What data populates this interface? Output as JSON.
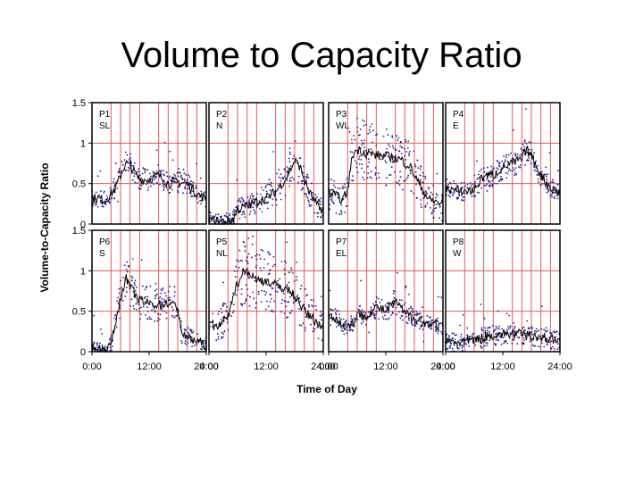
{
  "slide": {
    "title": "Volume to Capacity Ratio"
  },
  "colors": {
    "grid": "#e25a5a",
    "points": "#1d1d8a",
    "line": "#000000",
    "frame": "#000000"
  },
  "chart_data": {
    "type": "scatter",
    "ylabel": "Volume-to-Capacity Ratio",
    "xlabel": "Time of Day",
    "ylim": [
      0,
      1.5
    ],
    "yticks": [
      "0",
      "0.5",
      "1",
      "1.5"
    ],
    "xlim": [
      0,
      24
    ],
    "xticks": [
      "0:00",
      "12:00",
      "24:00"
    ],
    "grid": true,
    "panels": [
      {
        "id": "P1",
        "dir": "SL",
        "row": 0,
        "col": 0,
        "profile": [
          [
            0,
            0.32
          ],
          [
            3,
            0.3
          ],
          [
            5,
            0.45
          ],
          [
            7,
            0.75
          ],
          [
            8,
            0.72
          ],
          [
            10,
            0.55
          ],
          [
            12,
            0.55
          ],
          [
            14,
            0.6
          ],
          [
            16,
            0.5
          ],
          [
            18,
            0.52
          ],
          [
            20,
            0.5
          ],
          [
            22,
            0.38
          ],
          [
            24,
            0.3
          ]
        ]
      },
      {
        "id": "P2",
        "dir": "N",
        "row": 0,
        "col": 1,
        "profile": [
          [
            0,
            0.05
          ],
          [
            3,
            0.03
          ],
          [
            5,
            0.05
          ],
          [
            6,
            0.18
          ],
          [
            8,
            0.22
          ],
          [
            10,
            0.28
          ],
          [
            12,
            0.32
          ],
          [
            14,
            0.4
          ],
          [
            16,
            0.55
          ],
          [
            18,
            0.78
          ],
          [
            19,
            0.72
          ],
          [
            21,
            0.4
          ],
          [
            23,
            0.2
          ],
          [
            24,
            0.18
          ]
        ]
      },
      {
        "id": "P3",
        "dir": "WL",
        "row": 0,
        "col": 2,
        "profile": [
          [
            0,
            0.4
          ],
          [
            3,
            0.3
          ],
          [
            4,
            0.42
          ],
          [
            5,
            0.85
          ],
          [
            6,
            0.92
          ],
          [
            8,
            0.88
          ],
          [
            10,
            0.85
          ],
          [
            12,
            0.84
          ],
          [
            15,
            0.8
          ],
          [
            17,
            0.72
          ],
          [
            19,
            0.5
          ],
          [
            21,
            0.3
          ],
          [
            24,
            0.25
          ]
        ]
      },
      {
        "id": "P4",
        "dir": "E",
        "row": 0,
        "col": 3,
        "profile": [
          [
            0,
            0.45
          ],
          [
            3,
            0.4
          ],
          [
            6,
            0.42
          ],
          [
            8,
            0.6
          ],
          [
            10,
            0.6
          ],
          [
            12,
            0.7
          ],
          [
            14,
            0.75
          ],
          [
            16,
            0.8
          ],
          [
            17,
            0.92
          ],
          [
            18,
            0.85
          ],
          [
            20,
            0.6
          ],
          [
            22,
            0.45
          ],
          [
            24,
            0.38
          ]
        ]
      },
      {
        "id": "P6",
        "dir": "S",
        "row": 1,
        "col": 0,
        "profile": [
          [
            0,
            0.03
          ],
          [
            3,
            0.03
          ],
          [
            4,
            0.08
          ],
          [
            5,
            0.38
          ],
          [
            6,
            0.65
          ],
          [
            7,
            0.92
          ],
          [
            8,
            0.8
          ],
          [
            10,
            0.62
          ],
          [
            12,
            0.6
          ],
          [
            14,
            0.58
          ],
          [
            16,
            0.6
          ],
          [
            18,
            0.55
          ],
          [
            19,
            0.2
          ],
          [
            21,
            0.15
          ],
          [
            24,
            0.08
          ]
        ]
      },
      {
        "id": "P5",
        "dir": "NL",
        "row": 1,
        "col": 1,
        "profile": [
          [
            0,
            0.35
          ],
          [
            2,
            0.3
          ],
          [
            3,
            0.38
          ],
          [
            4,
            0.42
          ],
          [
            5,
            0.7
          ],
          [
            7,
            0.98
          ],
          [
            8,
            1.0
          ],
          [
            10,
            0.88
          ],
          [
            12,
            0.88
          ],
          [
            14,
            0.82
          ],
          [
            16,
            0.78
          ],
          [
            18,
            0.7
          ],
          [
            20,
            0.5
          ],
          [
            22,
            0.4
          ],
          [
            24,
            0.3
          ]
        ]
      },
      {
        "id": "P7",
        "dir": "EL",
        "row": 1,
        "col": 2,
        "profile": [
          [
            0,
            0.45
          ],
          [
            2,
            0.4
          ],
          [
            3,
            0.3
          ],
          [
            5,
            0.35
          ],
          [
            6,
            0.45
          ],
          [
            8,
            0.45
          ],
          [
            10,
            0.55
          ],
          [
            12,
            0.5
          ],
          [
            14,
            0.62
          ],
          [
            16,
            0.48
          ],
          [
            18,
            0.42
          ],
          [
            20,
            0.35
          ],
          [
            22,
            0.35
          ],
          [
            24,
            0.3
          ]
        ]
      },
      {
        "id": "P8",
        "dir": "W",
        "row": 1,
        "col": 3,
        "profile": [
          [
            0,
            0.12
          ],
          [
            3,
            0.12
          ],
          [
            6,
            0.14
          ],
          [
            8,
            0.18
          ],
          [
            10,
            0.2
          ],
          [
            12,
            0.22
          ],
          [
            14,
            0.22
          ],
          [
            16,
            0.22
          ],
          [
            18,
            0.2
          ],
          [
            20,
            0.18
          ],
          [
            22,
            0.15
          ],
          [
            24,
            0.14
          ]
        ]
      }
    ]
  }
}
